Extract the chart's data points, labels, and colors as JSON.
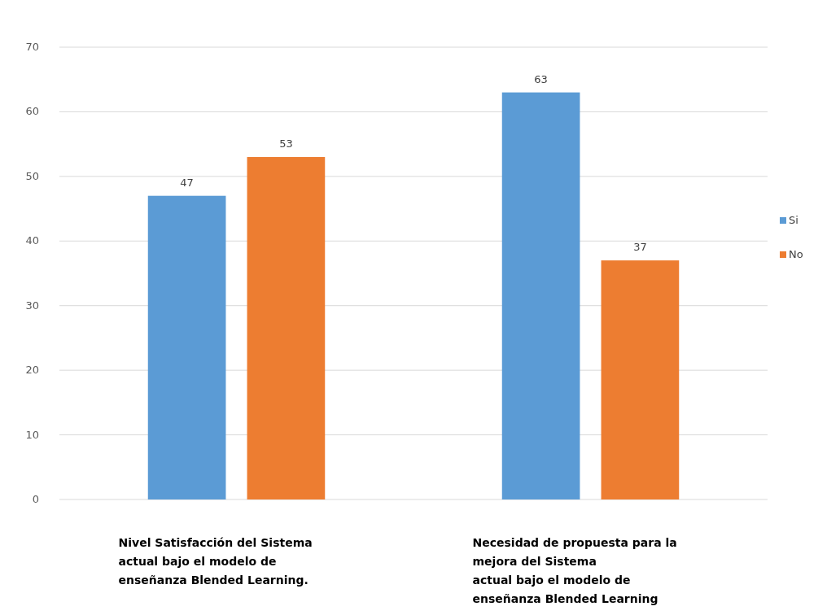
{
  "chart_data": {
    "type": "bar",
    "categories": [
      "Nivel Satisfacción del Sistema\nactual bajo el modelo de\nenseñanza Blended Learning.",
      "Necesidad de propuesta para la\nmejora del Sistema\nactual bajo el modelo de\nenseñanza Blended Learning"
    ],
    "series": [
      {
        "name": "Si",
        "color": "#5b9bd5",
        "values": [
          47,
          63
        ]
      },
      {
        "name": "No",
        "color": "#ed7d31",
        "values": [
          53,
          37
        ]
      }
    ],
    "ylim": [
      0,
      70
    ],
    "yticks": [
      0,
      10,
      20,
      30,
      40,
      50,
      60,
      70
    ],
    "grid": "y",
    "legend": "right",
    "data_labels": true
  }
}
